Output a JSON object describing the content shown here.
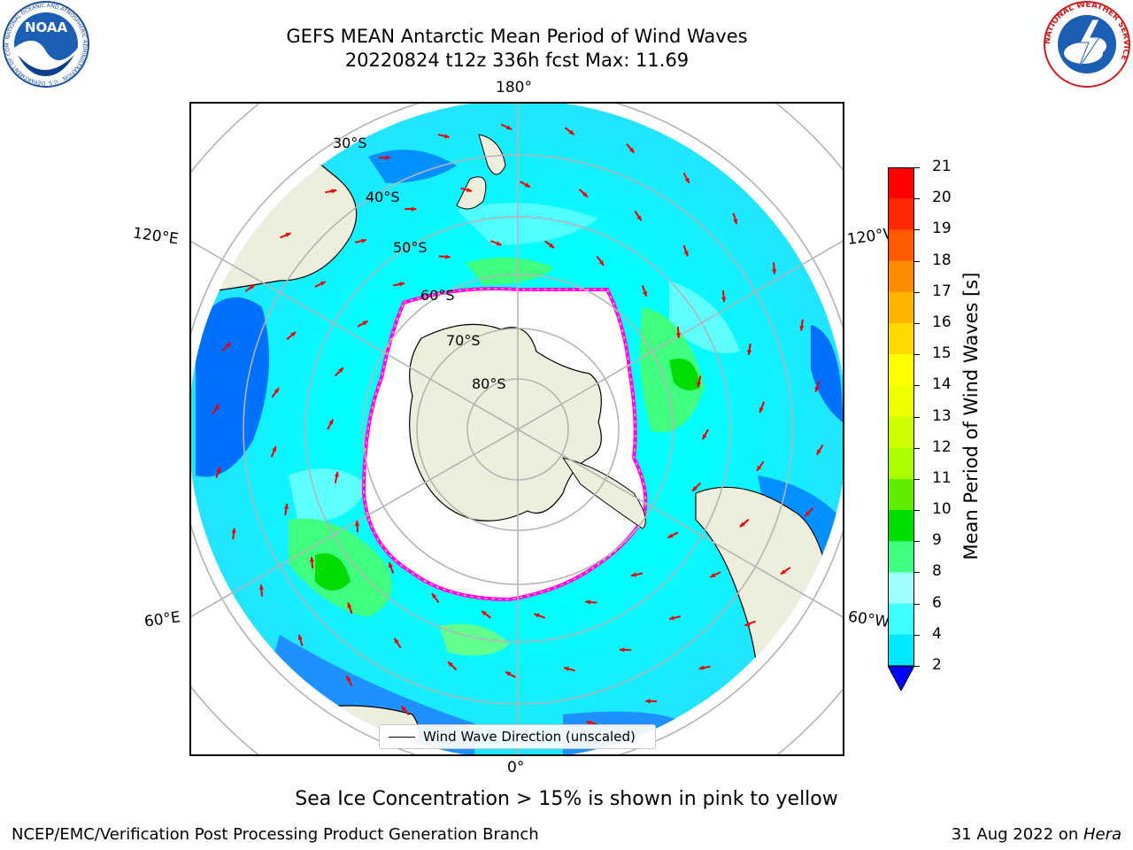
{
  "title": {
    "line1": "GEFS MEAN Antarctic Mean Period of Wind Waves",
    "line2": "20220824 t12z 336h fcst   Max: 11.69"
  },
  "logos": {
    "left": "NOAA",
    "left_ring_text": "NATIONAL OCEANIC AND ATMOSPHERIC ADMINISTRATION · U.S. DEPARTMENT OF COMMERCE",
    "right_ring_text": "NATIONAL WEATHER SERVICE"
  },
  "map": {
    "projection": "south-polar-stereographic",
    "longitude_labels": {
      "top": "180°",
      "bottom": "0°",
      "left_upper": "120°E",
      "left_lower": "60°E",
      "right_upper": "120°W",
      "right_lower": "60°W"
    },
    "latitude_labels": [
      "30°S",
      "40°S",
      "50°S",
      "60°S",
      "70°S",
      "80°S"
    ],
    "legend_label": "Wind Wave Direction (unscaled)",
    "colors": {
      "ocean_main": "#00ffff",
      "ocean_low": "#0070ff",
      "ocean_mid": "#40ffff",
      "ocean_high": "#40ff80",
      "green": "#00dd00",
      "land": "#eeeedd",
      "sea_ice_edge": "#ff00ff",
      "arrow": "#ee0000"
    }
  },
  "colorbar": {
    "label": "Mean Period of Wind Waves [s]",
    "ticks": [
      "21",
      "20",
      "19",
      "18",
      "17",
      "16",
      "15",
      "14",
      "13",
      "12",
      "11",
      "10",
      "9",
      "8",
      "6",
      "4",
      "2"
    ],
    "colors_bottom_to_top": [
      "#0000ff",
      "#0070ff",
      "#00e8ff",
      "#40ffff",
      "#a0ffff",
      "#40ff80",
      "#00dd00",
      "#60ee00",
      "#aaff00",
      "#ccff00",
      "#eeff00",
      "#ffff00",
      "#ffd800",
      "#ffb400",
      "#ff8c00",
      "#ff5a00",
      "#ff2800",
      "#ff0000"
    ]
  },
  "caption": "Sea Ice Concentration > 15% is shown in pink to yellow",
  "footer": {
    "left": "NCEP/EMC/Verification Post Processing Product Generation Branch",
    "right_date": "31 Aug 2022 on ",
    "right_host": "Hera"
  }
}
